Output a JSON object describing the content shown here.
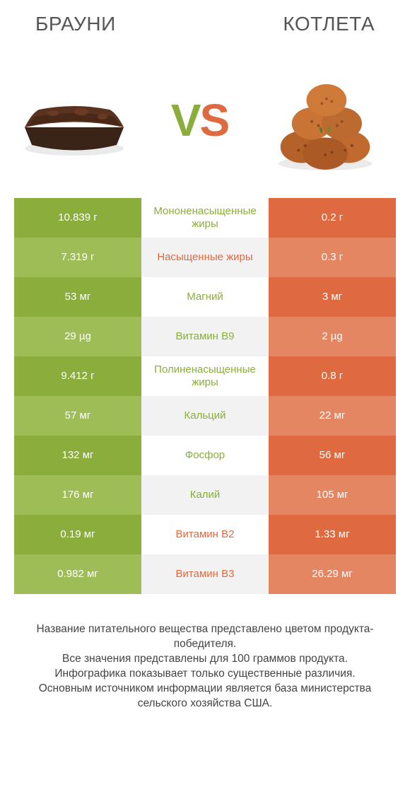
{
  "colors": {
    "green_a": "#8aad3c",
    "green_b": "#9ebd56",
    "orange_a": "#e06a3f",
    "orange_b": "#e58663",
    "mid_a": "#ffffff",
    "mid_b": "#f2f2f2",
    "text_dark": "#444444"
  },
  "header": {
    "left_title": "БРАУНИ",
    "right_title": "КОТЛЕТА"
  },
  "vs": {
    "v": "V",
    "s": "S"
  },
  "rows": [
    {
      "left": "10.839 г",
      "label": "Мононенасыщенные жиры",
      "right": "0.2 г",
      "winner": "left"
    },
    {
      "left": "7.319 г",
      "label": "Насыщенные жиры",
      "right": "0.3 г",
      "winner": "right"
    },
    {
      "left": "53 мг",
      "label": "Магний",
      "right": "3 мг",
      "winner": "left"
    },
    {
      "left": "29 µg",
      "label": "Витамин B9",
      "right": "2 µg",
      "winner": "left"
    },
    {
      "left": "9.412 г",
      "label": "Полиненасыщенные жиры",
      "right": "0.8 г",
      "winner": "left"
    },
    {
      "left": "57 мг",
      "label": "Кальций",
      "right": "22 мг",
      "winner": "left"
    },
    {
      "left": "132 мг",
      "label": "Фосфор",
      "right": "56 мг",
      "winner": "left"
    },
    {
      "left": "176 мг",
      "label": "Калий",
      "right": "105 мг",
      "winner": "left"
    },
    {
      "left": "0.19 мг",
      "label": "Витамин B2",
      "right": "1.33 мг",
      "winner": "right"
    },
    {
      "left": "0.982 мг",
      "label": "Витамин B3",
      "right": "26.29 мг",
      "winner": "right"
    }
  ],
  "footer": {
    "line1": "Название питательного вещества представлено цветом продукта-победителя.",
    "line2": "Все значения представлены для 100 граммов продукта.",
    "line3": "Инфографика показывает только существенные различия.",
    "line4": "Основным источником информации является база министерства сельского хозяйства США."
  }
}
